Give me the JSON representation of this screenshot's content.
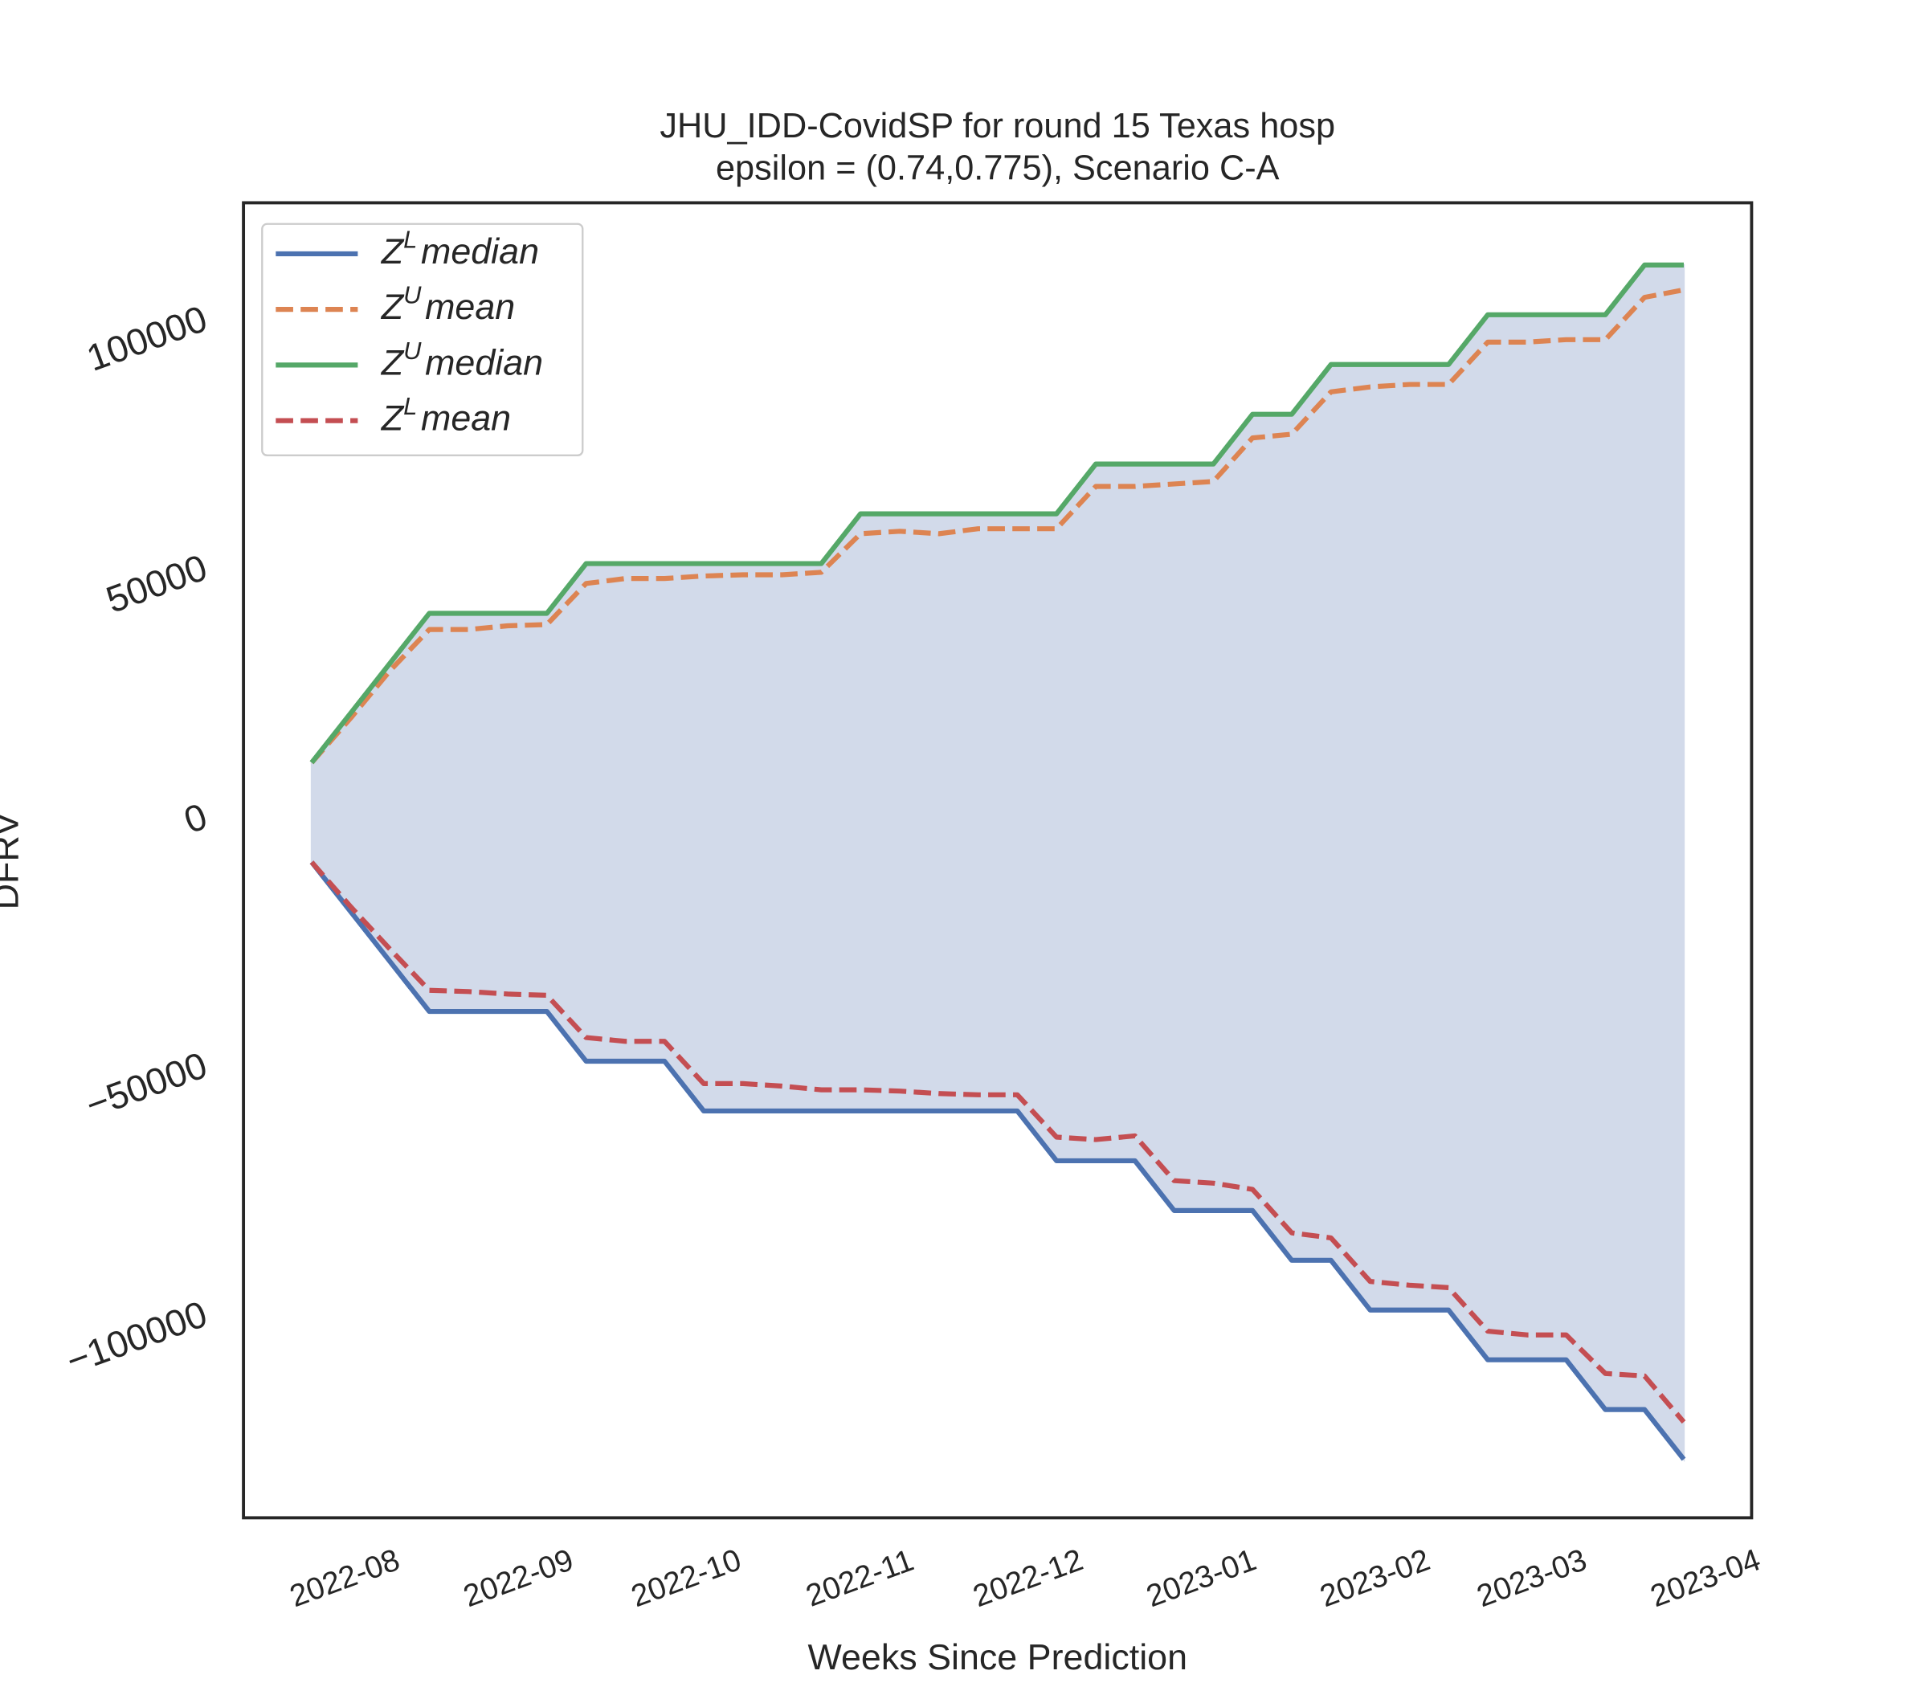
{
  "chart_data": {
    "type": "line",
    "title": "JHU_IDD-CovidSP for round 15 Texas  hosp",
    "subtitle": "epsilon = (0.74,0.775), Scenario C-A",
    "x_label": "Weeks Since Prediction",
    "y_label": "DFRV",
    "x": [
      0,
      1,
      2,
      3,
      4,
      5,
      6,
      7,
      8,
      9,
      10,
      11,
      12,
      13,
      14,
      15,
      16,
      17,
      18,
      19,
      20,
      21,
      22,
      23,
      24,
      25,
      26,
      27,
      28,
      29,
      30,
      31,
      32,
      33,
      34,
      35
    ],
    "xlim": [
      -1.74,
      36.73
    ],
    "xticks": [
      {
        "value": 0.86,
        "label": "2022-08"
      },
      {
        "value": 5.29,
        "label": "2022-09"
      },
      {
        "value": 9.57,
        "label": "2022-10"
      },
      {
        "value": 14.0,
        "label": "2022-11"
      },
      {
        "value": 18.29,
        "label": "2022-12"
      },
      {
        "value": 22.71,
        "label": "2023-01"
      },
      {
        "value": 27.14,
        "label": "2023-02"
      },
      {
        "value": 31.14,
        "label": "2023-03"
      },
      {
        "value": 35.57,
        "label": "2023-04"
      }
    ],
    "ylim": [
      -140750,
      123500
    ],
    "yticks": [
      {
        "value": -100000,
        "label": "−100000"
      },
      {
        "value": -50000,
        "label": "−50000"
      },
      0,
      50000,
      100000
    ],
    "grid": false,
    "legend": "upper left",
    "fill_color": "#d2daea",
    "series": [
      {
        "name": "Z^Lmedian",
        "color": "#4c72b0",
        "style": "solid",
        "values": [
          -9000,
          -19000,
          -29000,
          -39000,
          -39000,
          -39000,
          -39000,
          -49000,
          -49000,
          -49000,
          -59000,
          -59000,
          -59000,
          -59000,
          -59000,
          -59000,
          -59000,
          -59000,
          -59000,
          -69000,
          -69000,
          -69000,
          -79000,
          -79000,
          -79000,
          -89000,
          -89000,
          -99000,
          -99000,
          -99000,
          -109000,
          -109000,
          -109000,
          -119000,
          -119000,
          -129000
        ]
      },
      {
        "name": "Z^Umean",
        "color": "#dd8452",
        "style": "dashed",
        "values": [
          11000,
          20000,
          29500,
          37750,
          37750,
          38500,
          38750,
          47000,
          48000,
          48000,
          48500,
          48750,
          48750,
          49250,
          57000,
          57500,
          57000,
          58000,
          58000,
          58000,
          66500,
          66500,
          67000,
          67500,
          76250,
          77000,
          85500,
          86500,
          87000,
          87000,
          95500,
          95500,
          96000,
          96000,
          104500,
          106000
        ]
      },
      {
        "name": "Z^Umedian",
        "color": "#55a868",
        "style": "solid",
        "values": [
          11000,
          21000,
          31000,
          41000,
          41000,
          41000,
          41000,
          51000,
          51000,
          51000,
          51000,
          51000,
          51000,
          51000,
          61000,
          61000,
          61000,
          61000,
          61000,
          61000,
          71000,
          71000,
          71000,
          71000,
          81000,
          81000,
          91000,
          91000,
          91000,
          91000,
          101000,
          101000,
          101000,
          101000,
          111000,
          111000
        ]
      },
      {
        "name": "Z^Lmean",
        "color": "#c44e52",
        "style": "dashed",
        "values": [
          -9000,
          -18000,
          -26500,
          -34750,
          -35000,
          -35500,
          -35750,
          -44250,
          -45000,
          -45000,
          -53500,
          -53500,
          -54000,
          -54750,
          -54750,
          -55000,
          -55500,
          -55750,
          -55750,
          -64250,
          -64750,
          -64000,
          -73000,
          -73500,
          -74750,
          -83500,
          -84500,
          -93250,
          -94000,
          -94500,
          -103250,
          -104000,
          -104000,
          -111750,
          -112250,
          -121500
        ]
      }
    ]
  }
}
